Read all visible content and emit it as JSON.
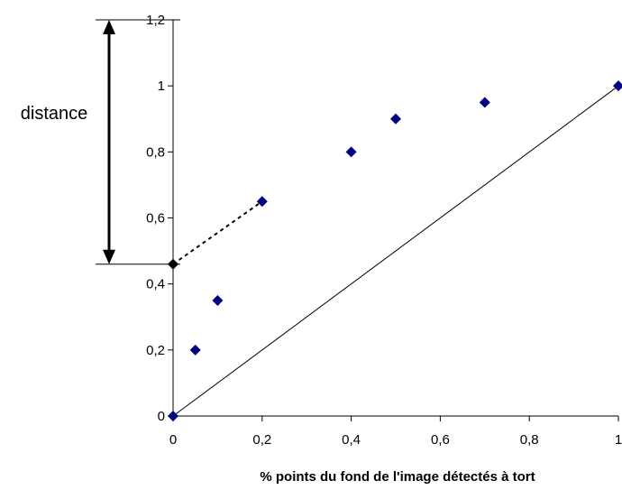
{
  "chart_data": {
    "type": "scatter",
    "title": "",
    "xlabel": "% points du fond de l'image détectés à tort",
    "ylabel": "",
    "xlim": [
      0,
      1
    ],
    "ylim": [
      0,
      1.2
    ],
    "grid": false,
    "x_ticks": [
      0,
      0.2,
      0.4,
      0.6,
      0.8,
      1
    ],
    "x_tick_labels": [
      "0",
      "0,2",
      "0,4",
      "0,6",
      "0,8",
      "1"
    ],
    "y_ticks": [
      0,
      0.2,
      0.4,
      0.6,
      0.8,
      1,
      1.2
    ],
    "y_tick_labels": [
      "0",
      "0,2",
      "0,4",
      "0,6",
      "0,8",
      "1",
      "1,2"
    ],
    "series": [
      {
        "marker": "diamond",
        "color": "#000080",
        "points": [
          {
            "x": 0,
            "y": 0
          },
          {
            "x": 0.05,
            "y": 0.2
          },
          {
            "x": 0.1,
            "y": 0.35
          },
          {
            "x": 0.2,
            "y": 0.65
          },
          {
            "x": 0.4,
            "y": 0.8
          },
          {
            "x": 0.5,
            "y": 0.9
          },
          {
            "x": 0.7,
            "y": 0.95
          },
          {
            "x": 1,
            "y": 1
          }
        ]
      }
    ],
    "reference_line": {
      "from": [
        0,
        0
      ],
      "to": [
        1,
        1
      ],
      "color": "#000000"
    },
    "annotation": {
      "label": "distance",
      "span": [
        0.46,
        1.2
      ],
      "extrapolated_point": {
        "x": 0,
        "y": 0.46,
        "color": "#000000"
      },
      "dotted_segment": {
        "from": [
          0,
          0.46
        ],
        "to": [
          0.2,
          0.65
        ]
      }
    }
  }
}
